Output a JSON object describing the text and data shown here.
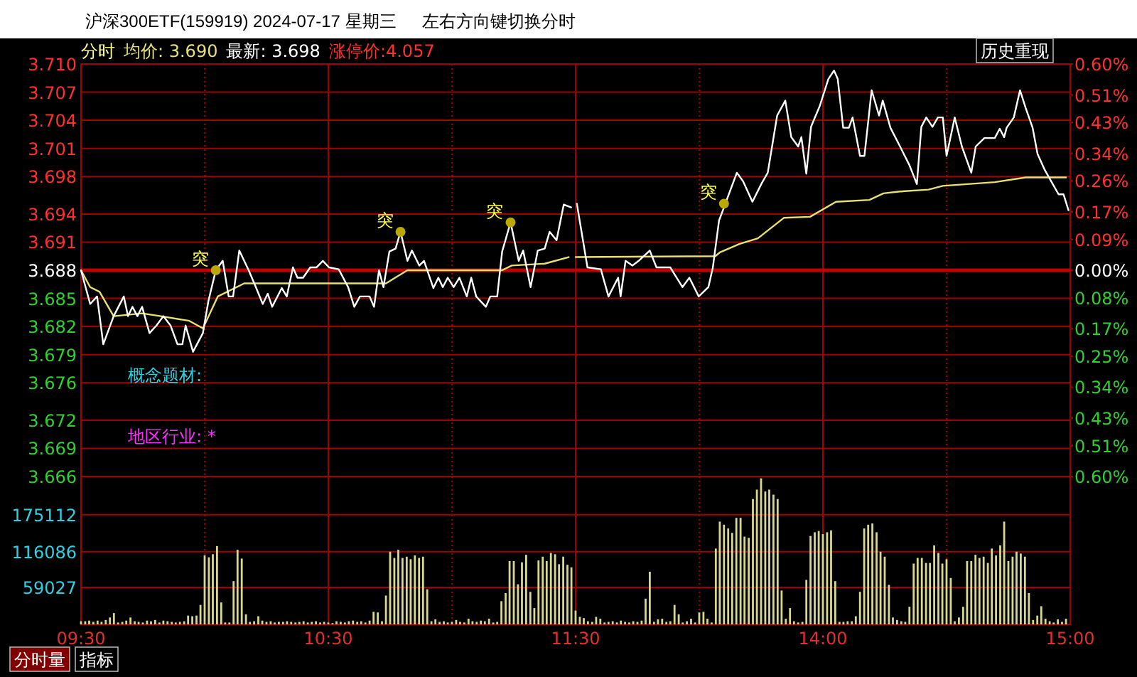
{
  "chart_data": [
    {
      "type": "line",
      "title": "沪深300ETF(159919) 2024-07-17 星期三",
      "subtitle": "左右方向键切换分时",
      "annotations": [
        "分时",
        "涨停价:4.057",
        "历史重现",
        "概念题材:",
        "地区行业: *",
        {
          "text": "突",
          "x": 10.045,
          "y": 3.688
        },
        {
          "text": "突",
          "x": 10.792,
          "y": 3.6921
        },
        {
          "text": "突",
          "x": 11.237,
          "y": 3.6931
        }
      ],
      "series": [
        {
          "name": "均价: 3.690",
          "color": "#e8e070",
          "x": [
            9.5,
            9.537,
            9.575,
            9.632,
            9.747,
            9.823,
            9.938,
            9.993,
            10.053,
            10.16,
            10.733,
            10.82,
            11.203,
            11.242,
            11.375,
            11.472
          ],
          "values": [
            3.688,
            3.6862,
            3.6857,
            3.6831,
            3.6834,
            3.6831,
            3.6826,
            3.6818,
            3.6852,
            3.6866,
            3.6866,
            3.688,
            3.688,
            3.6885,
            3.6887,
            3.6894
          ]
        },
        {
          "name": "最新: 3.698",
          "color": "#ffffff",
          "x": [
            9.5,
            9.537,
            9.565,
            9.59,
            9.632,
            9.673,
            9.69,
            9.708,
            9.728,
            9.747,
            9.777,
            9.805,
            9.833,
            9.862,
            9.89,
            9.91,
            9.923,
            9.953,
            9.993,
            10.015,
            10.045,
            10.073,
            10.097,
            10.115,
            10.14,
            10.178,
            10.207,
            10.235,
            10.255,
            10.273,
            10.312,
            10.332,
            10.357,
            10.375,
            10.398,
            10.427,
            10.452,
            10.478,
            10.503,
            10.542,
            10.58,
            10.605,
            10.628,
            10.667,
            10.685,
            10.705,
            10.723,
            10.747,
            10.772,
            10.792,
            10.82,
            10.838,
            10.868,
            10.887,
            10.925,
            10.945,
            10.963,
            10.983,
            11.007,
            11.03,
            11.06,
            11.078,
            11.098,
            11.137,
            11.155,
            11.183,
            11.203,
            11.237,
            11.27,
            11.288,
            11.318,
            11.347,
            11.375,
            11.395,
            11.423,
            11.452,
            11.482
          ],
          "values": [
            3.688,
            3.6844,
            3.6852,
            3.6801,
            3.6831,
            3.6852,
            3.6831,
            3.6841,
            3.6831,
            3.6841,
            3.6813,
            3.6821,
            3.6831,
            3.6821,
            3.6801,
            3.6801,
            3.6821,
            3.6793,
            3.6813,
            3.6847,
            3.688,
            3.689,
            3.6852,
            3.6852,
            3.6901,
            3.688,
            3.6862,
            3.6844,
            3.6855,
            3.6841,
            3.6861,
            3.6852,
            3.6883,
            3.6872,
            3.6872,
            3.6883,
            3.6883,
            3.689,
            3.6883,
            3.6881,
            3.6862,
            3.6841,
            3.6852,
            3.6852,
            3.6841,
            3.688,
            3.6862,
            3.69,
            3.6903,
            3.6921,
            3.689,
            3.6901,
            3.6885,
            3.689,
            3.6861,
            3.6872,
            3.6862,
            3.6872,
            3.6862,
            3.6872,
            3.6852,
            3.6872,
            3.6852,
            3.6841,
            3.6852,
            3.6852,
            3.69,
            3.6931,
            3.689,
            3.6901,
            3.6862,
            3.6901,
            3.6903,
            3.6921,
            3.6912,
            3.695,
            3.6947
          ]
        },
        {
          "type": "scatter",
          "color": "#b8a800",
          "marker": "circle",
          "x": [
            10.045,
            10.792,
            11.237
          ],
          "values": [
            3.688,
            3.6921,
            3.6931
          ]
        }
      ],
      "xlim": [
        9.5,
        11.5
      ],
      "xticks": [
        9.5,
        10,
        10.5,
        11,
        11.5
      ],
      "ylim": [
        3.666,
        3.71
      ],
      "yticks": [
        {
          "value": 3.71,
          "label": "3.710"
        },
        3.707,
        3.704,
        3.701,
        3.698,
        3.694,
        3.691,
        3.688,
        3.685,
        3.682,
        3.679,
        3.676,
        3.672,
        3.669,
        3.666
      ],
      "ref_lines": [
        {
          "axis": "y",
          "value": 3.688,
          "color": "#c00000"
        }
      ],
      "grid": true,
      "legend": "top left",
      "tick_labels": "y",
      "line_style": "solid"
    },
    {
      "type": "line",
      "annotations": [
        {
          "text": "突",
          "x": 13.6,
          "y": 3.6951
        }
      ],
      "series": [
        {
          "color": "#e8e070",
          "x": [
            13,
            13.565,
            13.583,
            13.662,
            13.737,
            13.843,
            13.948,
            14.053,
            14.188,
            14.245,
            14.312,
            14.427,
            14.485,
            14.695,
            14.82,
            14.983
          ],
          "values": [
            3.6894,
            3.6895,
            3.6899,
            3.6908,
            3.6914,
            3.6936,
            3.6937,
            3.6953,
            3.6955,
            3.6962,
            3.6964,
            3.6966,
            3.697,
            3.6974,
            3.6979,
            3.6979
          ]
        },
        {
          "color": "#ffffff",
          "x": [
            13.005,
            13.048,
            13.102,
            13.133,
            13.172,
            13.182,
            13.202,
            13.23,
            13.255,
            13.3,
            13.327,
            13.383,
            13.432,
            13.46,
            13.498,
            13.537,
            13.555,
            13.58,
            13.652,
            13.677,
            13.715,
            13.753,
            13.777,
            13.815,
            13.848,
            13.872,
            13.9,
            13.913,
            13.933,
            13.952,
            13.987,
            14.022,
            14.045,
            14.06,
            14.082,
            14.105,
            14.12,
            14.15,
            14.168,
            14.197,
            14.227,
            14.242,
            14.273,
            14.312,
            14.35,
            14.38,
            14.398,
            14.418,
            14.443,
            14.465,
            14.485,
            14.5,
            14.533,
            14.562,
            14.6,
            14.618,
            14.653,
            14.695,
            14.715,
            14.733,
            14.743,
            14.772,
            14.797,
            14.82,
            14.848,
            14.868,
            14.897,
            14.925,
            14.953,
            14.973,
            14.993
          ],
          "values": [
            3.6951,
            3.6883,
            3.6881,
            3.6852,
            3.6872,
            3.6852,
            3.689,
            3.6885,
            3.689,
            3.6901,
            3.6883,
            3.6883,
            3.6862,
            3.6872,
            3.6852,
            3.6862,
            3.6883,
            3.6933,
            3.6984,
            3.6975,
            3.6953,
            3.6973,
            3.6984,
            3.7045,
            3.7061,
            3.7022,
            3.7012,
            3.7022,
            3.6983,
            3.7033,
            3.7055,
            3.7084,
            3.7093,
            3.7084,
            3.7032,
            3.7032,
            3.7043,
            3.7002,
            3.7002,
            3.7072,
            3.7045,
            3.7061,
            3.7032,
            3.7012,
            3.6992,
            3.6972,
            3.7033,
            3.7043,
            3.7033,
            3.7043,
            3.7043,
            3.7002,
            3.7043,
            3.7012,
            3.6984,
            3.7012,
            3.7021,
            3.7021,
            3.7031,
            3.7022,
            3.7032,
            3.7043,
            3.7072,
            3.7053,
            3.7032,
            3.7004,
            3.6987,
            3.6974,
            3.6961,
            3.6961,
            3.6944
          ]
        },
        {
          "type": "scatter",
          "color": "#b8a800",
          "marker": "circle",
          "x": [
            13.6
          ],
          "values": [
            3.6951
          ]
        }
      ],
      "xlim": [
        13,
        15
      ],
      "xticks": [
        13,
        13.5,
        14,
        14.5,
        15
      ],
      "ylim": [
        3.666,
        3.71
      ],
      "yticks": [
        3.71,
        3.707,
        3.704,
        3.701,
        3.698,
        3.694,
        3.691,
        3.688,
        3.685,
        3.682,
        3.679,
        3.676,
        3.672,
        3.669,
        3.666
      ],
      "y2lim": [
        -0.6,
        0.6
      ],
      "y2ticks": [
        {
          "value": 0.6,
          "label": "0.60%"
        },
        {
          "value": 0.51,
          "label": "0.51%"
        },
        {
          "value": 0.43,
          "label": "0.43%"
        },
        {
          "value": 0.34,
          "label": "0.34%"
        },
        {
          "value": 0.26,
          "label": "0.26%"
        },
        {
          "value": 0.17,
          "label": "0.17%"
        },
        {
          "value": 0.09,
          "label": "0.09%"
        },
        {
          "value": 0,
          "label": "0.00%"
        },
        {
          "value": -0.08,
          "label": "0.08%"
        },
        {
          "value": -0.17,
          "label": "0.17%"
        },
        {
          "value": -0.25,
          "label": "0.25%"
        },
        {
          "value": -0.34,
          "label": "0.34%"
        },
        {
          "value": -0.43,
          "label": "0.43%"
        },
        {
          "value": -0.51,
          "label": "0.51%"
        },
        {
          "value": -0.6,
          "label": "0.60%"
        }
      ],
      "ref_lines": [
        {
          "axis": "y",
          "value": 3.688,
          "color": "#c00000"
        }
      ],
      "grid": true,
      "tick_labels": false,
      "line_style": "solid"
    },
    {
      "type": "bar",
      "color": "#d8d890",
      "annotations": [
        "分时量",
        "指标"
      ],
      "x": [
        9.5,
        9.517,
        9.533,
        9.55,
        9.567,
        9.583,
        9.6,
        9.617,
        9.633,
        9.65,
        9.667,
        9.683,
        9.7,
        9.717,
        9.733,
        9.75,
        9.767,
        9.783,
        9.8,
        9.817,
        9.833,
        9.85,
        9.867,
        9.883,
        9.9,
        9.917,
        9.933,
        9.95,
        9.967,
        9.983,
        10,
        10.017,
        10.033,
        10.05,
        10.067,
        10.083,
        10.1,
        10.117,
        10.133,
        10.15,
        10.167,
        10.183,
        10.2,
        10.217,
        10.233,
        10.25,
        10.267,
        10.283,
        10.3,
        10.317,
        10.333,
        10.35,
        10.367,
        10.383,
        10.4,
        10.417,
        10.433,
        10.45,
        10.467,
        10.483,
        10.5,
        10.517,
        10.533,
        10.55,
        10.567,
        10.583,
        10.6,
        10.617,
        10.633,
        10.65,
        10.667,
        10.683,
        10.7,
        10.717,
        10.733,
        10.75,
        10.767,
        10.783,
        10.8,
        10.817,
        10.833,
        10.85,
        10.867,
        10.883,
        10.9,
        10.917,
        10.933,
        10.95,
        10.967,
        10.983,
        11,
        11.017,
        11.033,
        11.05,
        11.067,
        11.083,
        11.1,
        11.117,
        11.133,
        11.15,
        11.167,
        11.183,
        11.2,
        11.217,
        11.233,
        11.25,
        11.267,
        11.283,
        11.3,
        11.317,
        11.333,
        11.35,
        11.367,
        11.383,
        11.4,
        11.417,
        11.433,
        11.45,
        11.467,
        11.483
      ],
      "values": [
        5000,
        5000,
        6000,
        4000,
        6000,
        4000,
        7000,
        11000,
        18000,
        3000,
        4000,
        6000,
        11000,
        5000,
        4000,
        3000,
        6000,
        5000,
        7000,
        3000,
        6000,
        5000,
        4000,
        3000,
        4000,
        5000,
        14000,
        13000,
        14000,
        31000,
        110000,
        107000,
        112000,
        125000,
        35000,
        3000,
        3000,
        69000,
        119000,
        105000,
        16000,
        4000,
        5000,
        13000,
        6000,
        4000,
        5000,
        3000,
        4000,
        4000,
        5000,
        4000,
        3000,
        4000,
        5000,
        3000,
        4000,
        5000,
        3000,
        4000,
        3000,
        2000,
        5000,
        4000,
        3000,
        5000,
        6000,
        4000,
        5000,
        3000,
        6000,
        20000,
        19000,
        5000,
        46000,
        116000,
        106000,
        119000,
        106000,
        108000,
        104000,
        110000,
        106000,
        108000,
        56000,
        5000,
        8000,
        4000,
        5000,
        3000,
        4000,
        7000,
        4000,
        3000,
        9000,
        5000,
        4000,
        6000,
        5000,
        9000,
        3000,
        4000,
        37000,
        50000,
        101000,
        101000,
        64000,
        99000,
        111000,
        52000,
        26000,
        102000,
        108000,
        101000,
        114000,
        112000,
        96000,
        108000,
        95000,
        91000
      ],
      "xlim": [
        9.5,
        11.5
      ],
      "xticks": [
        {
          "value": 9.5,
          "label": "09:30"
        },
        {
          "value": 10,
          "label": null
        },
        {
          "value": 10.5,
          "label": "10:30"
        },
        {
          "value": 11,
          "label": null
        },
        {
          "value": 11.5,
          "label": "11:30"
        }
      ],
      "ylim": [
        0,
        236000
      ],
      "yticks": [
        59027,
        116086,
        175112
      ],
      "grid": true
    },
    {
      "type": "bar",
      "color": "#d8d890",
      "x": [
        13,
        13.017,
        13.033,
        13.05,
        13.067,
        13.083,
        13.1,
        13.117,
        13.133,
        13.15,
        13.167,
        13.183,
        13.2,
        13.217,
        13.233,
        13.25,
        13.267,
        13.283,
        13.3,
        13.317,
        13.333,
        13.35,
        13.367,
        13.383,
        13.4,
        13.417,
        13.433,
        13.45,
        13.467,
        13.483,
        13.5,
        13.517,
        13.533,
        13.55,
        13.567,
        13.583,
        13.6,
        13.617,
        13.633,
        13.65,
        13.667,
        13.683,
        13.7,
        13.717,
        13.733,
        13.75,
        13.767,
        13.783,
        13.8,
        13.817,
        13.833,
        13.85,
        13.867,
        13.883,
        13.9,
        13.917,
        13.933,
        13.95,
        13.967,
        13.983,
        14,
        14.017,
        14.033,
        14.05,
        14.067,
        14.083,
        14.1,
        14.117,
        14.133,
        14.15,
        14.167,
        14.183,
        14.2,
        14.217,
        14.233,
        14.25,
        14.267,
        14.283,
        14.3,
        14.317,
        14.333,
        14.35,
        14.367,
        14.383,
        14.4,
        14.417,
        14.433,
        14.45,
        14.467,
        14.483,
        14.5,
        14.517,
        14.533,
        14.55,
        14.567,
        14.583,
        14.6,
        14.617,
        14.633,
        14.65,
        14.667,
        14.683,
        14.7,
        14.717,
        14.733,
        14.75,
        14.767,
        14.783,
        14.8,
        14.817,
        14.833,
        14.85,
        14.867,
        14.883,
        14.9,
        14.917,
        14.933,
        14.95,
        14.967,
        14.983
      ],
      "values": [
        22000,
        12000,
        10000,
        5000,
        4000,
        12000,
        9000,
        3000,
        4000,
        5000,
        3000,
        6000,
        4000,
        3000,
        5000,
        4000,
        6000,
        41000,
        84000,
        4000,
        8000,
        9000,
        4000,
        5000,
        31000,
        16000,
        3000,
        5000,
        9000,
        3000,
        19000,
        20000,
        9000,
        3000,
        121000,
        164000,
        159000,
        153000,
        146000,
        170000,
        170000,
        140000,
        138000,
        200000,
        215000,
        233000,
        212000,
        215000,
        207000,
        200000,
        54000,
        9000,
        26000,
        5000,
        3000,
        4000,
        71000,
        141000,
        147000,
        149000,
        144000,
        147000,
        150000,
        69000,
        4000,
        4000,
        5000,
        5000,
        13000,
        52000,
        153000,
        159000,
        161000,
        147000,
        116000,
        108000,
        63000,
        11000,
        7000,
        5000,
        4000,
        28000,
        97000,
        106000,
        106000,
        98000,
        98000,
        126000,
        114000,
        97000,
        104000,
        74000,
        5000,
        11000,
        28000,
        101000,
        101000,
        111000,
        106000,
        108000,
        98000,
        121000,
        110000,
        126000,
        164000,
        101000,
        108000,
        116000,
        113000,
        108000,
        50000,
        7000,
        14000,
        29000,
        9000,
        5000,
        3000,
        8000,
        4000,
        9000
      ],
      "xlim": [
        13,
        15
      ],
      "xticks": [
        {
          "value": 13,
          "label": null
        },
        {
          "value": 13.5,
          "label": null
        },
        {
          "value": 14,
          "label": "14:00"
        },
        {
          "value": 14.5,
          "label": null
        },
        {
          "value": 15,
          "label": "15:00"
        }
      ],
      "ylim": [
        0,
        236000
      ],
      "yticks": [
        59027,
        116086,
        175112
      ],
      "grid": true,
      "tick_labels": "x"
    }
  ]
}
